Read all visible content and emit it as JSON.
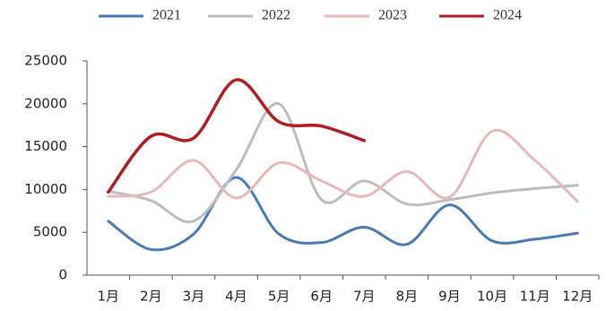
{
  "chart_data": {
    "type": "line",
    "categories": [
      "1月",
      "2月",
      "3月",
      "4月",
      "5月",
      "6月",
      "7月",
      "8月",
      "9月",
      "10月",
      "11月",
      "12月"
    ],
    "series": [
      {
        "name": "2021",
        "color": "#4a7ab5",
        "values": [
          6300,
          3000,
          4800,
          11400,
          4800,
          3800,
          5600,
          3600,
          8200,
          4000,
          4200,
          4900
        ]
      },
      {
        "name": "2022",
        "color": "#bdbdbd",
        "values": [
          9800,
          8700,
          6300,
          12300,
          20000,
          8800,
          11000,
          8300,
          8800,
          9600,
          10100,
          10500
        ]
      },
      {
        "name": "2023",
        "color": "#e8b8b8",
        "values": [
          9200,
          9700,
          13400,
          9000,
          13100,
          11000,
          9200,
          12100,
          9100,
          16800,
          13400,
          8600
        ]
      },
      {
        "name": "2024",
        "color": "#b01c22",
        "values": [
          9700,
          16200,
          16000,
          22800,
          17900,
          17400,
          15700,
          null,
          null,
          null,
          null,
          null
        ]
      }
    ],
    "ylim": [
      0,
      25000
    ],
    "yticks": [
      0,
      5000,
      10000,
      15000,
      20000,
      25000
    ],
    "grid": false,
    "legend": "top"
  }
}
